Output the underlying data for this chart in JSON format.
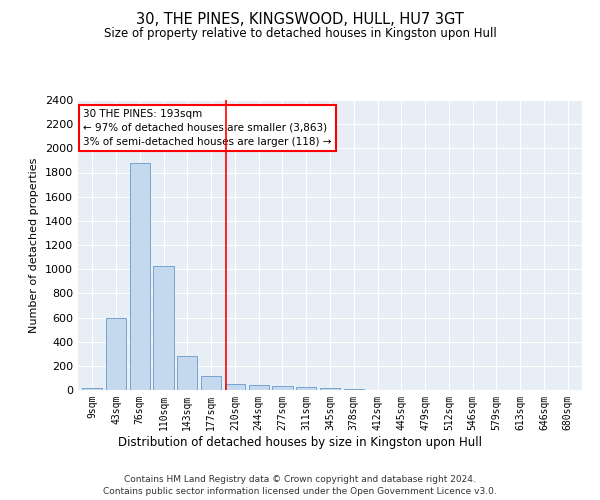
{
  "title": "30, THE PINES, KINGSWOOD, HULL, HU7 3GT",
  "subtitle": "Size of property relative to detached houses in Kingston upon Hull",
  "xlabel": "Distribution of detached houses by size in Kingston upon Hull",
  "ylabel": "Number of detached properties",
  "bar_color": "#c5d9ee",
  "bar_edge_color": "#6699cc",
  "background_color": "#e8eef5",
  "grid_color": "white",
  "categories": [
    "9sqm",
    "43sqm",
    "76sqm",
    "110sqm",
    "143sqm",
    "177sqm",
    "210sqm",
    "244sqm",
    "277sqm",
    "311sqm",
    "345sqm",
    "378sqm",
    "412sqm",
    "445sqm",
    "479sqm",
    "512sqm",
    "546sqm",
    "579sqm",
    "613sqm",
    "646sqm",
    "680sqm"
  ],
  "values": [
    20,
    600,
    1880,
    1030,
    285,
    120,
    50,
    45,
    30,
    25,
    15,
    12,
    0,
    0,
    0,
    0,
    0,
    0,
    0,
    0,
    0
  ],
  "ylim": [
    0,
    2400
  ],
  "yticks": [
    0,
    200,
    400,
    600,
    800,
    1000,
    1200,
    1400,
    1600,
    1800,
    2000,
    2200,
    2400
  ],
  "red_line_x": 5.62,
  "annotation_text": "30 THE PINES: 193sqm\n← 97% of detached houses are smaller (3,863)\n3% of semi-detached houses are larger (118) →",
  "annotation_box_color": "white",
  "annotation_box_edge_color": "red",
  "footer_line1": "Contains HM Land Registry data © Crown copyright and database right 2024.",
  "footer_line2": "Contains public sector information licensed under the Open Government Licence v3.0."
}
